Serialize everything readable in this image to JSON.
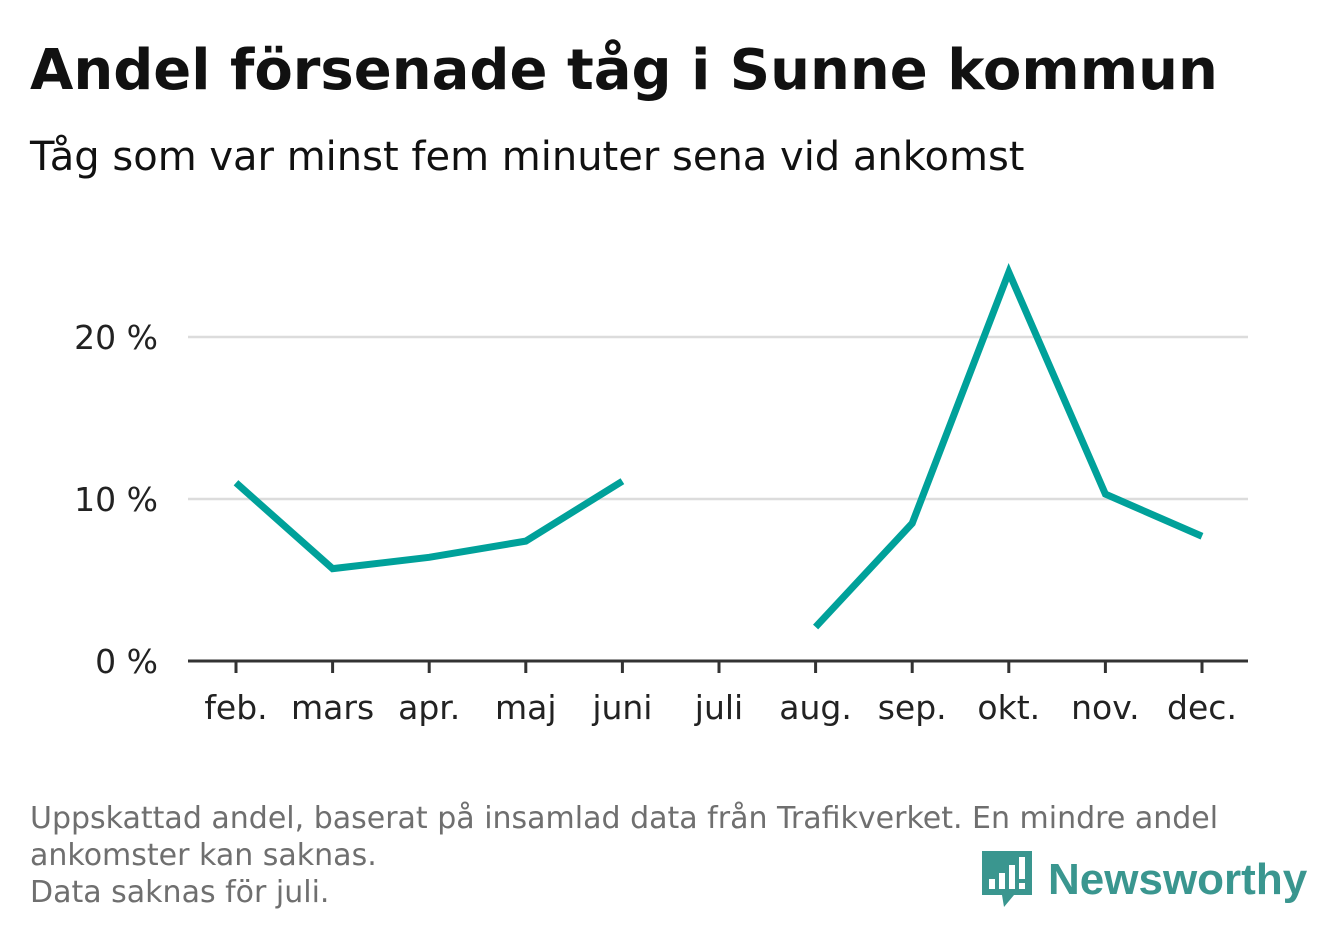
{
  "header": {
    "title": "Andel försenade tåg i Sunne kommun",
    "subtitle": "Tåg som var minst fem minuter sena vid ankomst"
  },
  "footnote": {
    "lines": [
      "Uppskattad andel, baserat på insamlad data från Trafikverket. En mindre andel",
      "ankomster kan saknas.",
      "Data saknas för juli."
    ]
  },
  "brand": {
    "name": "Newsworthy",
    "icon": "bar-chart-speech-bubble-icon",
    "color": "#3a968f"
  },
  "chart_data": {
    "type": "line",
    "categories": [
      "feb.",
      "mars",
      "apr.",
      "maj",
      "juni",
      "juli",
      "aug.",
      "sep.",
      "okt.",
      "nov.",
      "dec."
    ],
    "series": [
      {
        "values": [
          11.0,
          5.7,
          6.4,
          7.4,
          11.1,
          null,
          2.1,
          8.5,
          24.0,
          10.3,
          7.7
        ],
        "color": "#00a19a"
      }
    ],
    "yticks": [
      0,
      10,
      20
    ],
    "ytick_labels": [
      "0 %",
      "10 %",
      "20 %"
    ],
    "ylim": [
      0,
      25
    ],
    "grid": true,
    "legend": "none"
  }
}
